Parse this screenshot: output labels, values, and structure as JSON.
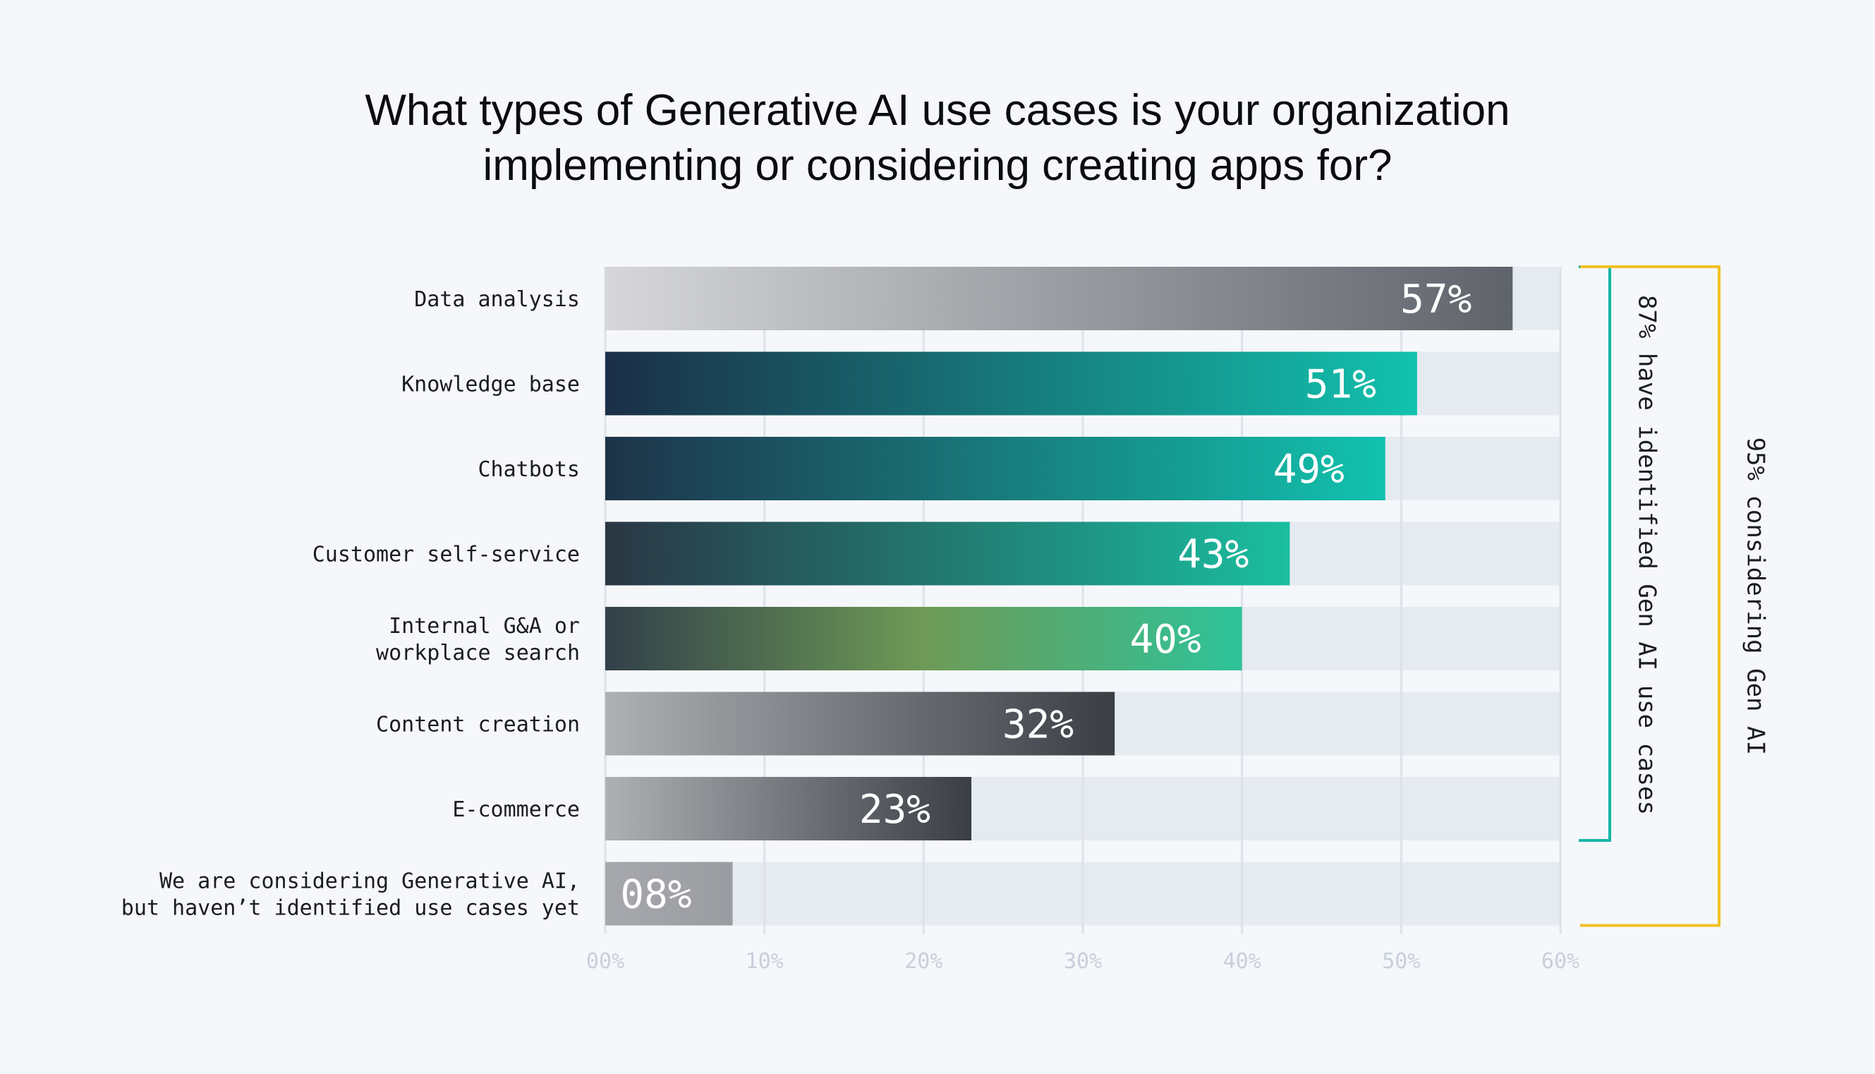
{
  "chart_data": {
    "type": "bar",
    "orientation": "horizontal",
    "title_lines": [
      "What types of Generative AI use cases is your organization",
      "implementing or considering creating apps for?"
    ],
    "categories": [
      [
        "Data analysis"
      ],
      [
        "Knowledge base"
      ],
      [
        "Chatbots"
      ],
      [
        "Customer self-service"
      ],
      [
        "Internal G&A or",
        "workplace search"
      ],
      [
        "Content creation"
      ],
      [
        "E-commerce"
      ],
      [
        "We are considering Generative AI,",
        "but haven’t identified use cases yet"
      ]
    ],
    "values": [
      57,
      51,
      49,
      43,
      40,
      32,
      23,
      8
    ],
    "value_labels": [
      "57%",
      "51%",
      "49%",
      "43%",
      "40%",
      "32%",
      "23%",
      "08%"
    ],
    "xlim": [
      0,
      60
    ],
    "x_ticks": [
      0,
      10,
      20,
      30,
      40,
      50,
      60
    ],
    "x_tick_labels": [
      "00%",
      "10%",
      "20%",
      "30%",
      "40%",
      "50%",
      "60%"
    ],
    "grid": true,
    "legend": "none",
    "bar_gradients": [
      [
        "#d6d7da",
        "#5f636b"
      ],
      [
        "#1b2f47",
        "#12c2ae"
      ],
      [
        "#1e3349",
        "#12c2ae"
      ],
      [
        "#2a3643",
        "#1abea0"
      ],
      [
        "#32404a",
        "#6e9a56",
        "#2ec39a"
      ],
      [
        "#aeb0b4",
        "#3a3e45"
      ],
      [
        "#aeb0b4",
        "#3a3e45"
      ],
      [
        "#a6a8ad",
        "#9a9ca1"
      ]
    ],
    "track_color": "#e6eaf1",
    "brackets": [
      {
        "text": "87% have identified Gen AI use cases",
        "from": 0,
        "to": 6,
        "color": "#15b6a8"
      },
      {
        "text": "95% considering Gen AI",
        "from": 0,
        "to": 7,
        "color": "#f2c023"
      }
    ]
  }
}
